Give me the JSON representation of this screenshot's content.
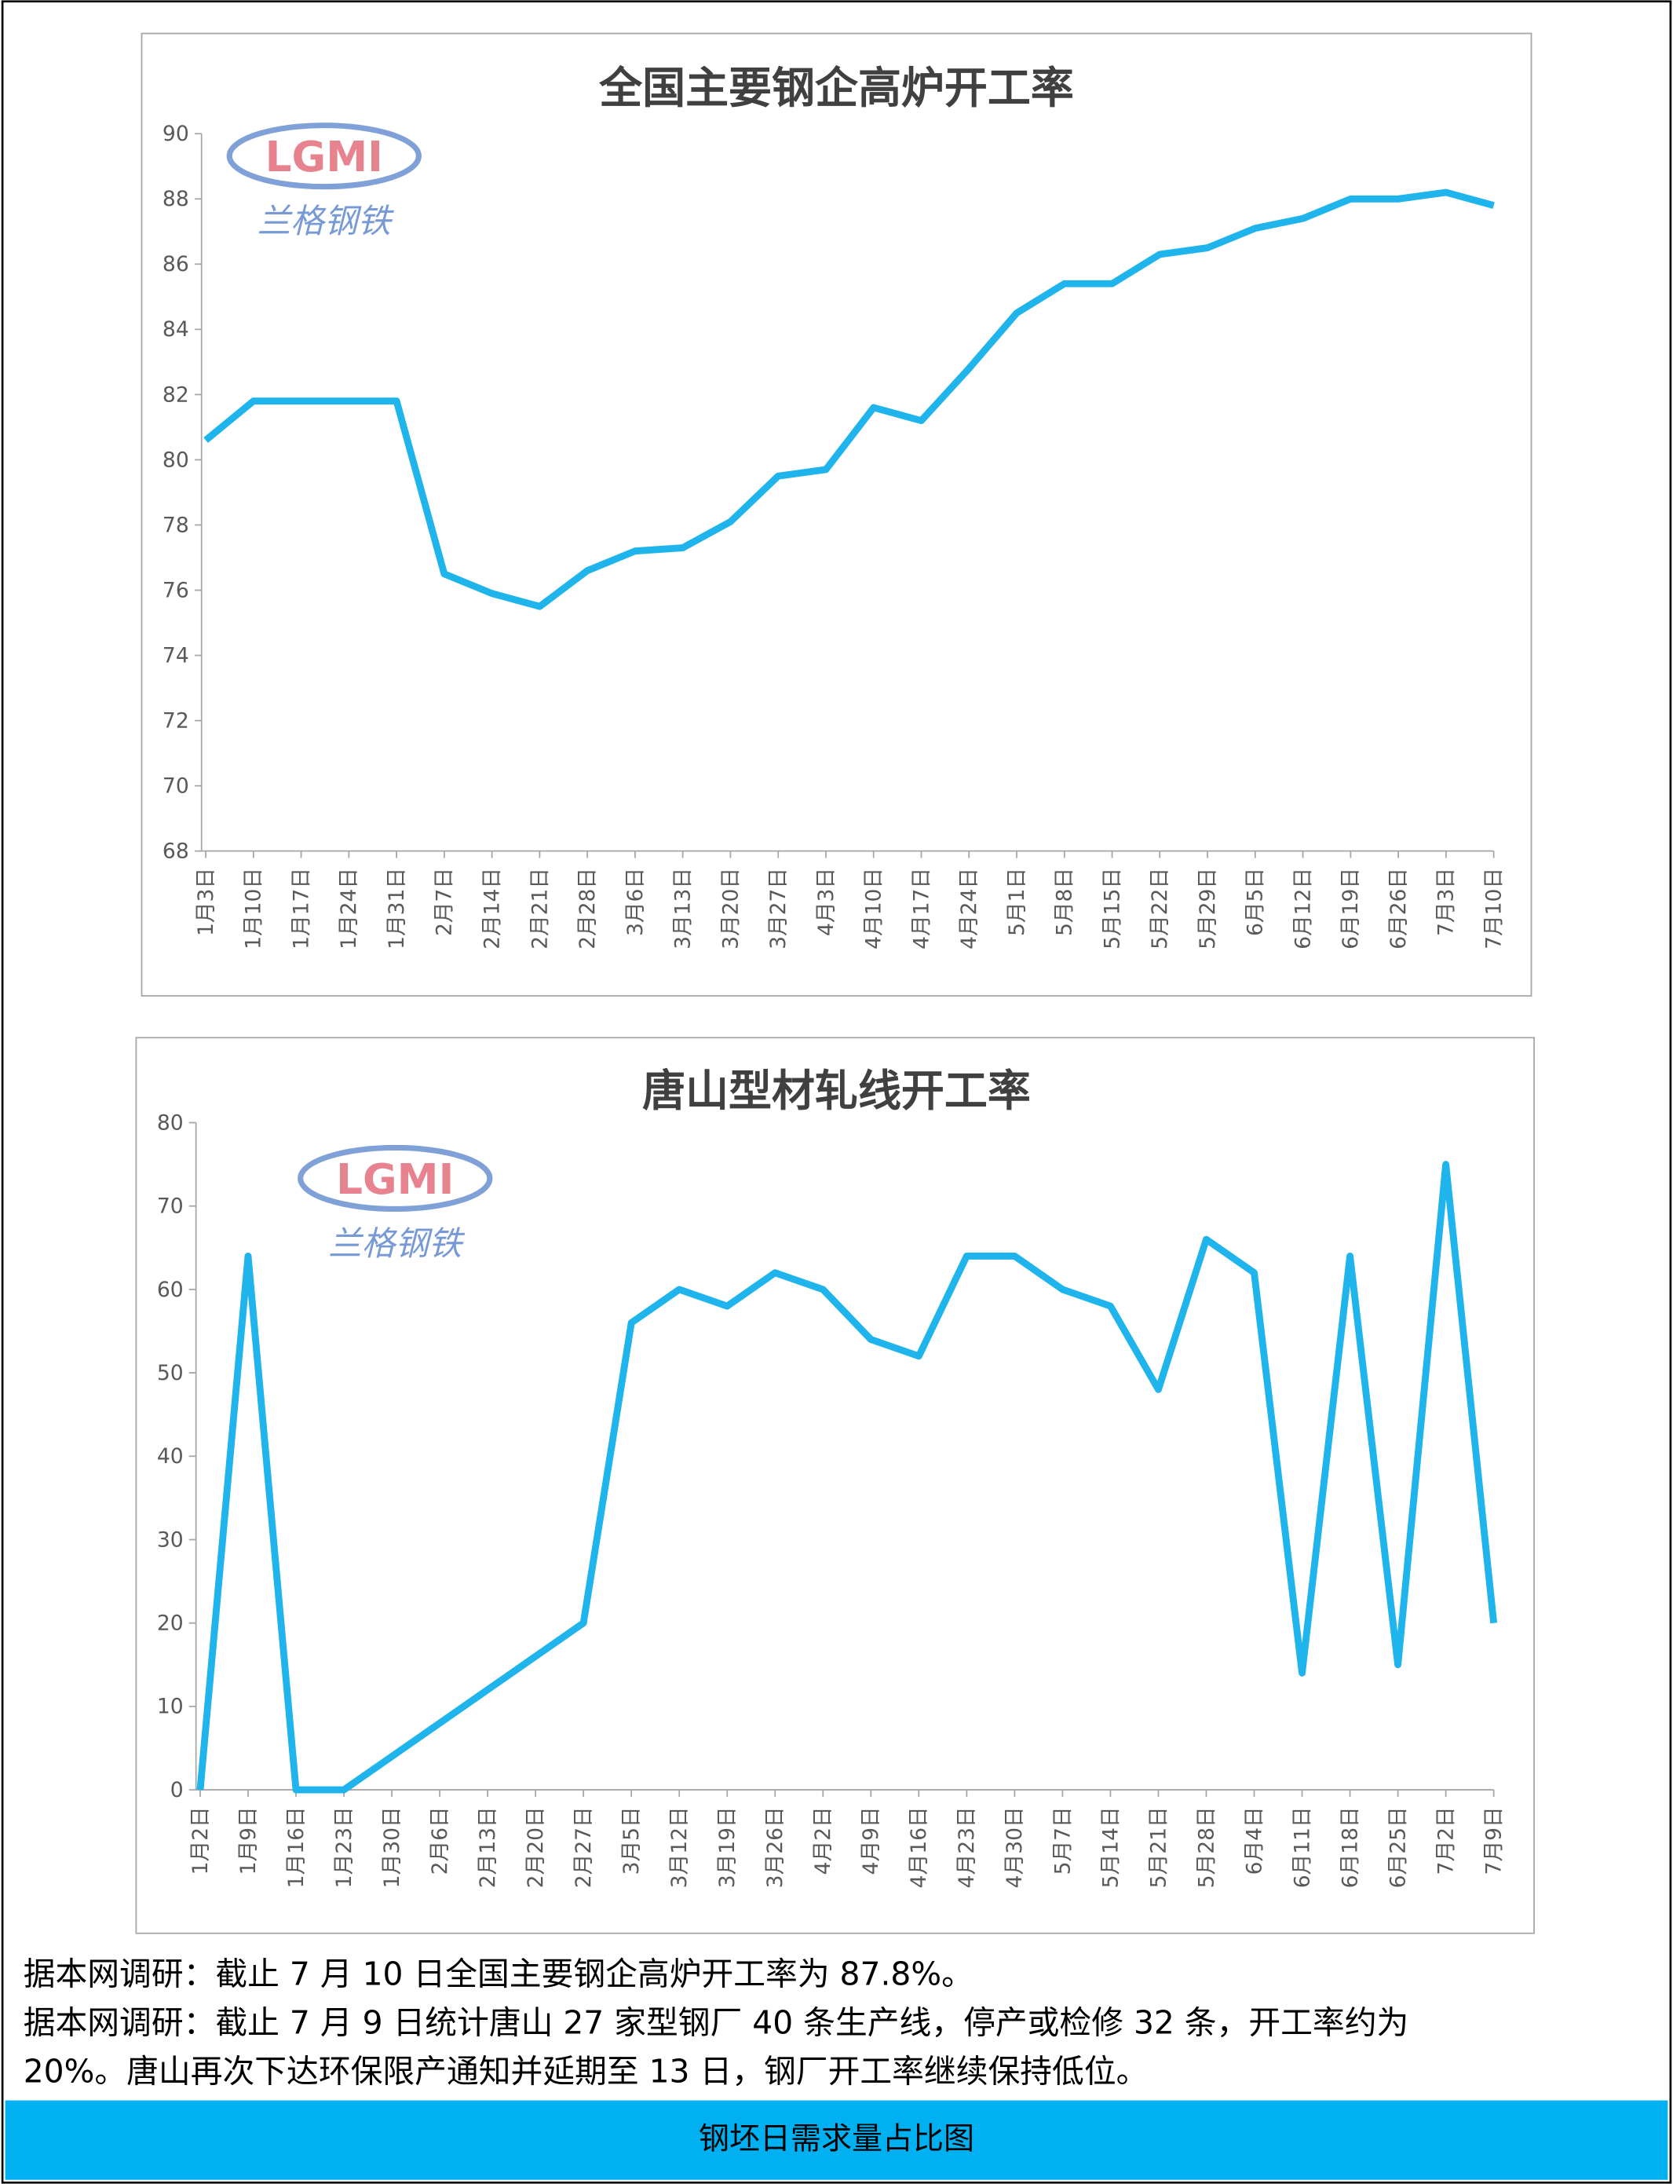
{
  "chart_data": [
    {
      "type": "line",
      "title": "全国主要钢企高炉开工率",
      "logo": {
        "mark": "LGMI",
        "name": "兰格钢铁"
      },
      "categories": [
        "1月3日",
        "1月10日",
        "1月17日",
        "1月24日",
        "1月31日",
        "2月7日",
        "2月14日",
        "2月21日",
        "2月28日",
        "3月6日",
        "3月13日",
        "3月20日",
        "3月27日",
        "4月3日",
        "4月10日",
        "4月17日",
        "4月24日",
        "5月1日",
        "5月8日",
        "5月15日",
        "5月22日",
        "5月29日",
        "6月5日",
        "6月12日",
        "6月19日",
        "6月26日",
        "7月3日",
        "7月10日"
      ],
      "values": [
        80.6,
        81.8,
        81.8,
        81.8,
        81.8,
        76.5,
        75.9,
        75.5,
        76.6,
        77.2,
        77.3,
        78.1,
        79.5,
        79.7,
        81.6,
        81.2,
        82.8,
        84.5,
        85.4,
        85.4,
        86.3,
        86.5,
        87.1,
        87.4,
        88.0,
        88.0,
        88.2,
        87.8
      ],
      "color": "#1fb4ec",
      "ylim": [
        68,
        90
      ],
      "yticks": [
        68,
        70,
        72,
        74,
        76,
        78,
        80,
        82,
        84,
        86,
        88,
        90
      ]
    },
    {
      "type": "line",
      "title": "唐山型材轧线开工率",
      "logo": {
        "mark": "LGMI",
        "name": "兰格钢铁"
      },
      "categories": [
        "1月2日",
        "1月9日",
        "1月16日",
        "1月23日",
        "1月30日",
        "2月6日",
        "2月13日",
        "2月20日",
        "2月27日",
        "3月5日",
        "3月12日",
        "3月19日",
        "3月26日",
        "4月2日",
        "4月9日",
        "4月16日",
        "4月23日",
        "4月30日",
        "5月7日",
        "5月14日",
        "5月21日",
        "5月28日",
        "6月4日",
        "6月11日",
        "6月18日",
        "6月25日",
        "7月2日",
        "7月9日"
      ],
      "values": [
        0,
        64,
        0,
        0,
        4,
        8,
        12,
        16,
        20,
        56,
        60,
        58,
        62,
        60,
        54,
        52,
        64,
        64,
        60,
        58,
        48,
        66,
        62,
        14,
        64,
        15,
        75,
        20
      ],
      "color": "#1fb4ec",
      "ylim": [
        0,
        80
      ],
      "yticks": [
        0,
        10,
        20,
        30,
        40,
        50,
        60,
        70,
        80
      ]
    }
  ],
  "notes": [
    "据本网调研：截止 7 月 10 日全国主要钢企高炉开工率为 87.8%。",
    "据本网调研：截止 7 月 9 日统计唐山 27 家型钢厂 40 条生产线，停产或检修 32 条，开工率约为",
    "20%。唐山再次下达环保限产通知并延期至 13 日，钢厂开工率继续保持低位。"
  ],
  "footer": "钢坯日需求量占比图"
}
